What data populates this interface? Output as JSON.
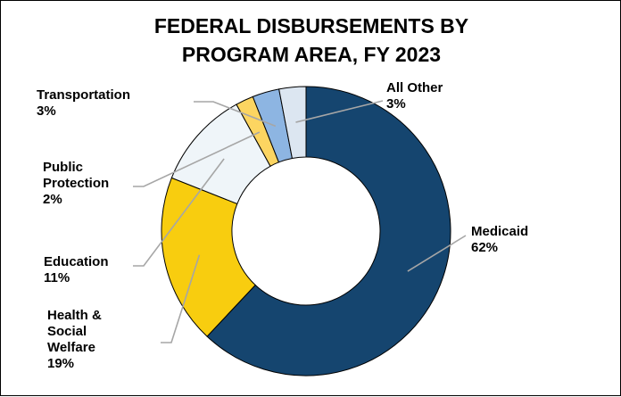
{
  "chart_data": {
    "type": "pie",
    "donut": true,
    "title_lines": [
      "FEDERAL DISBURSEMENTS BY",
      "PROGRAM AREA, FY 2023"
    ],
    "legend": "none",
    "slices": [
      {
        "label": "Medicaid",
        "value_label": "62%",
        "value": 62,
        "color": "#15456f"
      },
      {
        "label": "Health & Social Welfare",
        "value_label": "19%",
        "value": 19,
        "color": "#f8cd0f"
      },
      {
        "label": "Education",
        "value_label": "11%",
        "value": 11,
        "color": "#eff5f9"
      },
      {
        "label": "Public Protection",
        "value_label": "2%",
        "value": 2,
        "color": "#fcd561"
      },
      {
        "label": "Transportation",
        "value_label": "3%",
        "value": 3,
        "color": "#8db5e2"
      },
      {
        "label": "All Other",
        "value_label": "3%",
        "value": 3,
        "color": "#dce6f1"
      }
    ]
  }
}
